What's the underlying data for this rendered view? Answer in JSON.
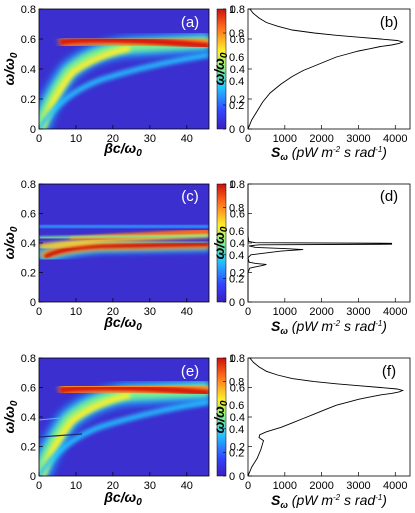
{
  "chart_data": [
    {
      "panel": "(a)",
      "type": "heatmap",
      "colormap": "jet",
      "xlabel": "βc/ω0",
      "ylabel": "ω/ω0",
      "xlim": [
        0,
        46
      ],
      "ylim": [
        0,
        0.8
      ],
      "xticks": [
        "0",
        "10",
        "20",
        "30",
        "40"
      ],
      "yticks": [
        "0",
        "0.2",
        "0.4",
        "0.6",
        "0.8"
      ],
      "colorbar_ticks": [
        "0",
        "0.2",
        "0.4",
        "0.6",
        "0.8",
        "1"
      ],
      "colorbar_range": [
        0,
        1
      ],
      "features": [
        {
          "kind": "lower-branch",
          "rises_to": 0.6,
          "width": 0.06
        },
        {
          "kind": "upper-branch",
          "from": 0.59,
          "to": 0.63,
          "width": 0.035
        }
      ]
    },
    {
      "panel": "(b)",
      "type": "line",
      "xlabel": "Sω (pW m-2 s rad-1)",
      "ylabel": "ω/ω0",
      "xlim": [
        0,
        4400
      ],
      "ylim": [
        0,
        0.8
      ],
      "xticks": [
        "0",
        "1000",
        "2000",
        "3000",
        "4000"
      ],
      "yticks": [
        "0",
        "0.2",
        "0.4",
        "0.6",
        "0.8"
      ],
      "x": [
        0,
        100,
        250,
        400,
        600,
        900,
        1200,
        1500,
        1800,
        2100,
        2400,
        2700,
        3000,
        3300,
        3600,
        3900,
        4100,
        4200,
        4050,
        3600,
        3000,
        2400,
        1800,
        1200,
        800,
        500,
        300,
        150,
        50
      ],
      "y": [
        0.0,
        0.06,
        0.12,
        0.18,
        0.24,
        0.3,
        0.35,
        0.39,
        0.42,
        0.45,
        0.48,
        0.5,
        0.52,
        0.535,
        0.55,
        0.56,
        0.57,
        0.58,
        0.59,
        0.6,
        0.612,
        0.625,
        0.64,
        0.66,
        0.685,
        0.71,
        0.74,
        0.77,
        0.8
      ]
    },
    {
      "panel": "(c)",
      "type": "heatmap",
      "colormap": "jet",
      "xlabel": "βc/ω0",
      "ylabel": "ω/ω0",
      "xlim": [
        0,
        46
      ],
      "ylim": [
        0,
        0.8
      ],
      "xticks": [
        "0",
        "10",
        "20",
        "30",
        "40"
      ],
      "yticks": [
        "0",
        "0.2",
        "0.4",
        "0.6",
        "0.8"
      ],
      "colorbar_ticks": [
        "0",
        "0.2",
        "0.4",
        "0.6",
        "0.8",
        "1"
      ],
      "colorbar_range": [
        0,
        1
      ],
      "features": [
        {
          "kind": "flat-band",
          "from": 0.22,
          "to": 0.28,
          "width": 0.03
        },
        {
          "kind": "flat-band",
          "from": 0.33,
          "to": 0.38,
          "width": 0.025
        }
      ]
    },
    {
      "panel": "(d)",
      "type": "line",
      "xlabel": "Sω (pW m-2 s rad-1)",
      "ylabel": "ω/ω0",
      "xlim": [
        0,
        4400
      ],
      "ylim": [
        0,
        0.8
      ],
      "xticks": [
        "0",
        "1000",
        "2000",
        "3000",
        "4000"
      ],
      "yticks": [
        "0",
        "0.2",
        "0.4",
        "0.6",
        "0.8"
      ],
      "x": [
        0,
        0,
        50,
        400,
        500,
        200,
        30,
        0,
        80,
        900,
        1500,
        1000,
        200,
        30,
        300,
        3900,
        3900,
        200,
        20,
        0,
        0
      ],
      "y": [
        0.0,
        0.2,
        0.23,
        0.248,
        0.255,
        0.262,
        0.27,
        0.3,
        0.32,
        0.345,
        0.355,
        0.362,
        0.37,
        0.38,
        0.388,
        0.392,
        0.398,
        0.402,
        0.41,
        0.45,
        0.8
      ]
    },
    {
      "panel": "(e)",
      "type": "heatmap",
      "colormap": "jet",
      "xlabel": "βc/ω0",
      "ylabel": "ω/ω0",
      "xlim": [
        0,
        46
      ],
      "ylim": [
        0,
        0.8
      ],
      "xticks": [
        "0",
        "10",
        "20",
        "30",
        "40"
      ],
      "yticks": [
        "0",
        "0.2",
        "0.4",
        "0.6",
        "0.8"
      ],
      "colorbar_ticks": [
        "0",
        "0.2",
        "0.4",
        "0.6",
        "0.8",
        "1"
      ],
      "colorbar_range": [
        0,
        1
      ],
      "features": [
        {
          "kind": "lower-branch",
          "rises_to": 0.6,
          "width": 0.06
        },
        {
          "kind": "upper-branch",
          "from": 0.59,
          "to": 0.63,
          "width": 0.035
        },
        {
          "kind": "crossing-line",
          "y": 0.26,
          "x_end": 12
        }
      ]
    },
    {
      "panel": "(f)",
      "type": "line",
      "xlabel": "Sω (pW m-2 s rad-1)",
      "ylabel": "ω/ω0",
      "xlim": [
        0,
        4400
      ],
      "ylim": [
        0,
        0.8
      ],
      "xticks": [
        "0",
        "1000",
        "2000",
        "3000",
        "4000"
      ],
      "yticks": [
        "0",
        "0.2",
        "0.4",
        "0.6",
        "0.8"
      ],
      "x": [
        0,
        100,
        250,
        350,
        420,
        300,
        320,
        500,
        900,
        1200,
        1500,
        1800,
        2100,
        2400,
        2700,
        3000,
        3300,
        3600,
        3900,
        4100,
        4200,
        4050,
        3600,
        3000,
        2400,
        1800,
        1200,
        800,
        500,
        300,
        150,
        50
      ],
      "y": [
        0.0,
        0.06,
        0.12,
        0.18,
        0.24,
        0.26,
        0.28,
        0.3,
        0.33,
        0.36,
        0.39,
        0.42,
        0.45,
        0.48,
        0.5,
        0.52,
        0.535,
        0.55,
        0.56,
        0.57,
        0.58,
        0.59,
        0.6,
        0.612,
        0.625,
        0.64,
        0.66,
        0.685,
        0.71,
        0.74,
        0.77,
        0.8
      ]
    }
  ]
}
